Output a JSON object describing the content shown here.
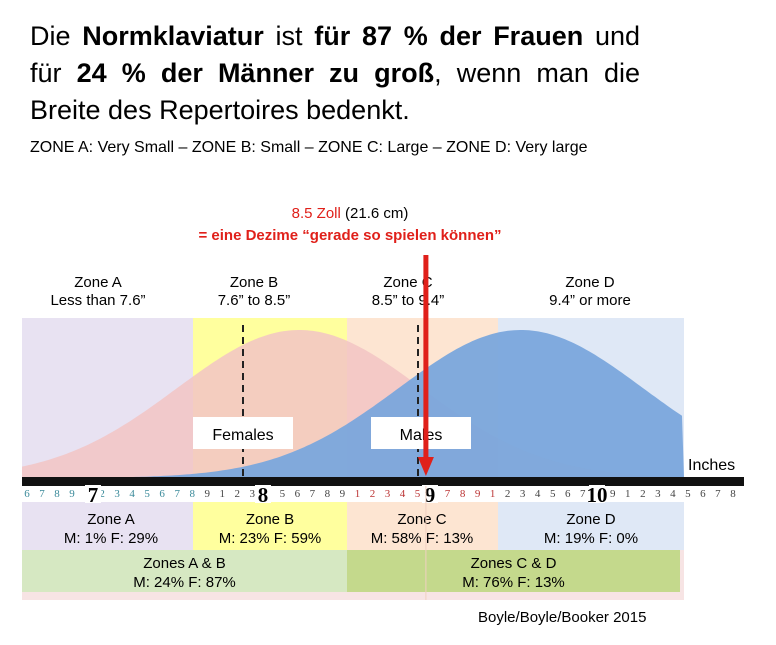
{
  "headline": {
    "p1": "Die ",
    "b1": "Normklaviatur",
    "p2": " ist ",
    "b2": "für 87 % der Frauen",
    "p3": " und für ",
    "b3": "24 % der Männer zu groß",
    "p4": ", wenn man die Breite des Repertoires bedenkt."
  },
  "zones_line": "ZONE A: Very Small – ZONE B: Small – ZONE C: Large – ZONE D: Very large",
  "callout": {
    "value_red": "8.5 Zoll",
    "value_rest": " (21.6 cm)",
    "line2": "= eine Dezime “gerade so spielen können”"
  },
  "source": "Boyle/Boyle/Booker 2015",
  "colors": {
    "zoneA": "#e8e2f2",
    "zoneB": "#ffff9e",
    "zoneC": "#fde5d2",
    "zoneD": "#dfe8f6",
    "females": "#f2c4c4",
    "males": "#7aa6dc",
    "arrow": "#e0201a",
    "groupAB": "#d6e8c2",
    "groupCD": "#c4d98c"
  },
  "chart_data": {
    "type": "area",
    "xlabel": "Inches",
    "x_range": [
      6.6,
      11.8
    ],
    "ruler": {
      "major_labels": [
        "7",
        "8",
        "9",
        "10"
      ],
      "minor_ticks": [
        "6",
        "7",
        "8",
        "9",
        "1",
        "2",
        "3",
        "4",
        "5",
        "6",
        "7",
        "8",
        "9",
        "1",
        "2",
        "3",
        "4",
        "5",
        "6",
        "7",
        "8",
        "9",
        "1",
        "2",
        "3",
        "4",
        "5",
        "6",
        "7",
        "8",
        "9",
        "1",
        "2",
        "3",
        "4",
        "5",
        "6",
        "7",
        "8",
        "9",
        "1",
        "2",
        "3",
        "4",
        "5",
        "6",
        "7",
        "8"
      ]
    },
    "zones": [
      {
        "name": "Zone A",
        "range_label": "Less than 7.6”",
        "from": 6.6,
        "to": 7.6,
        "stats": "M: 1% F: 29%"
      },
      {
        "name": "Zone B",
        "range_label": "7.6” to 8.5”",
        "from": 7.6,
        "to": 8.5,
        "stats": "M: 23% F: 59%"
      },
      {
        "name": "Zone C",
        "range_label": "8.5” to 9.4”",
        "from": 8.5,
        "to": 9.4,
        "stats": "M: 58% F: 13%"
      },
      {
        "name": "Zone D",
        "range_label": "9.4” or more",
        "from": 9.4,
        "to": 11.6,
        "stats": "M: 19% F: 0%"
      }
    ],
    "groups": [
      {
        "name": "Zones A & B",
        "stats": "M: 24% F: 87%"
      },
      {
        "name": "Zones C & D",
        "stats": "M: 76% F: 13%"
      }
    ],
    "series": [
      {
        "name": "Females",
        "mean": 7.9,
        "sd": 0.58
      },
      {
        "name": "Males",
        "mean": 8.95,
        "sd": 0.58
      }
    ],
    "marker": 8.5
  }
}
